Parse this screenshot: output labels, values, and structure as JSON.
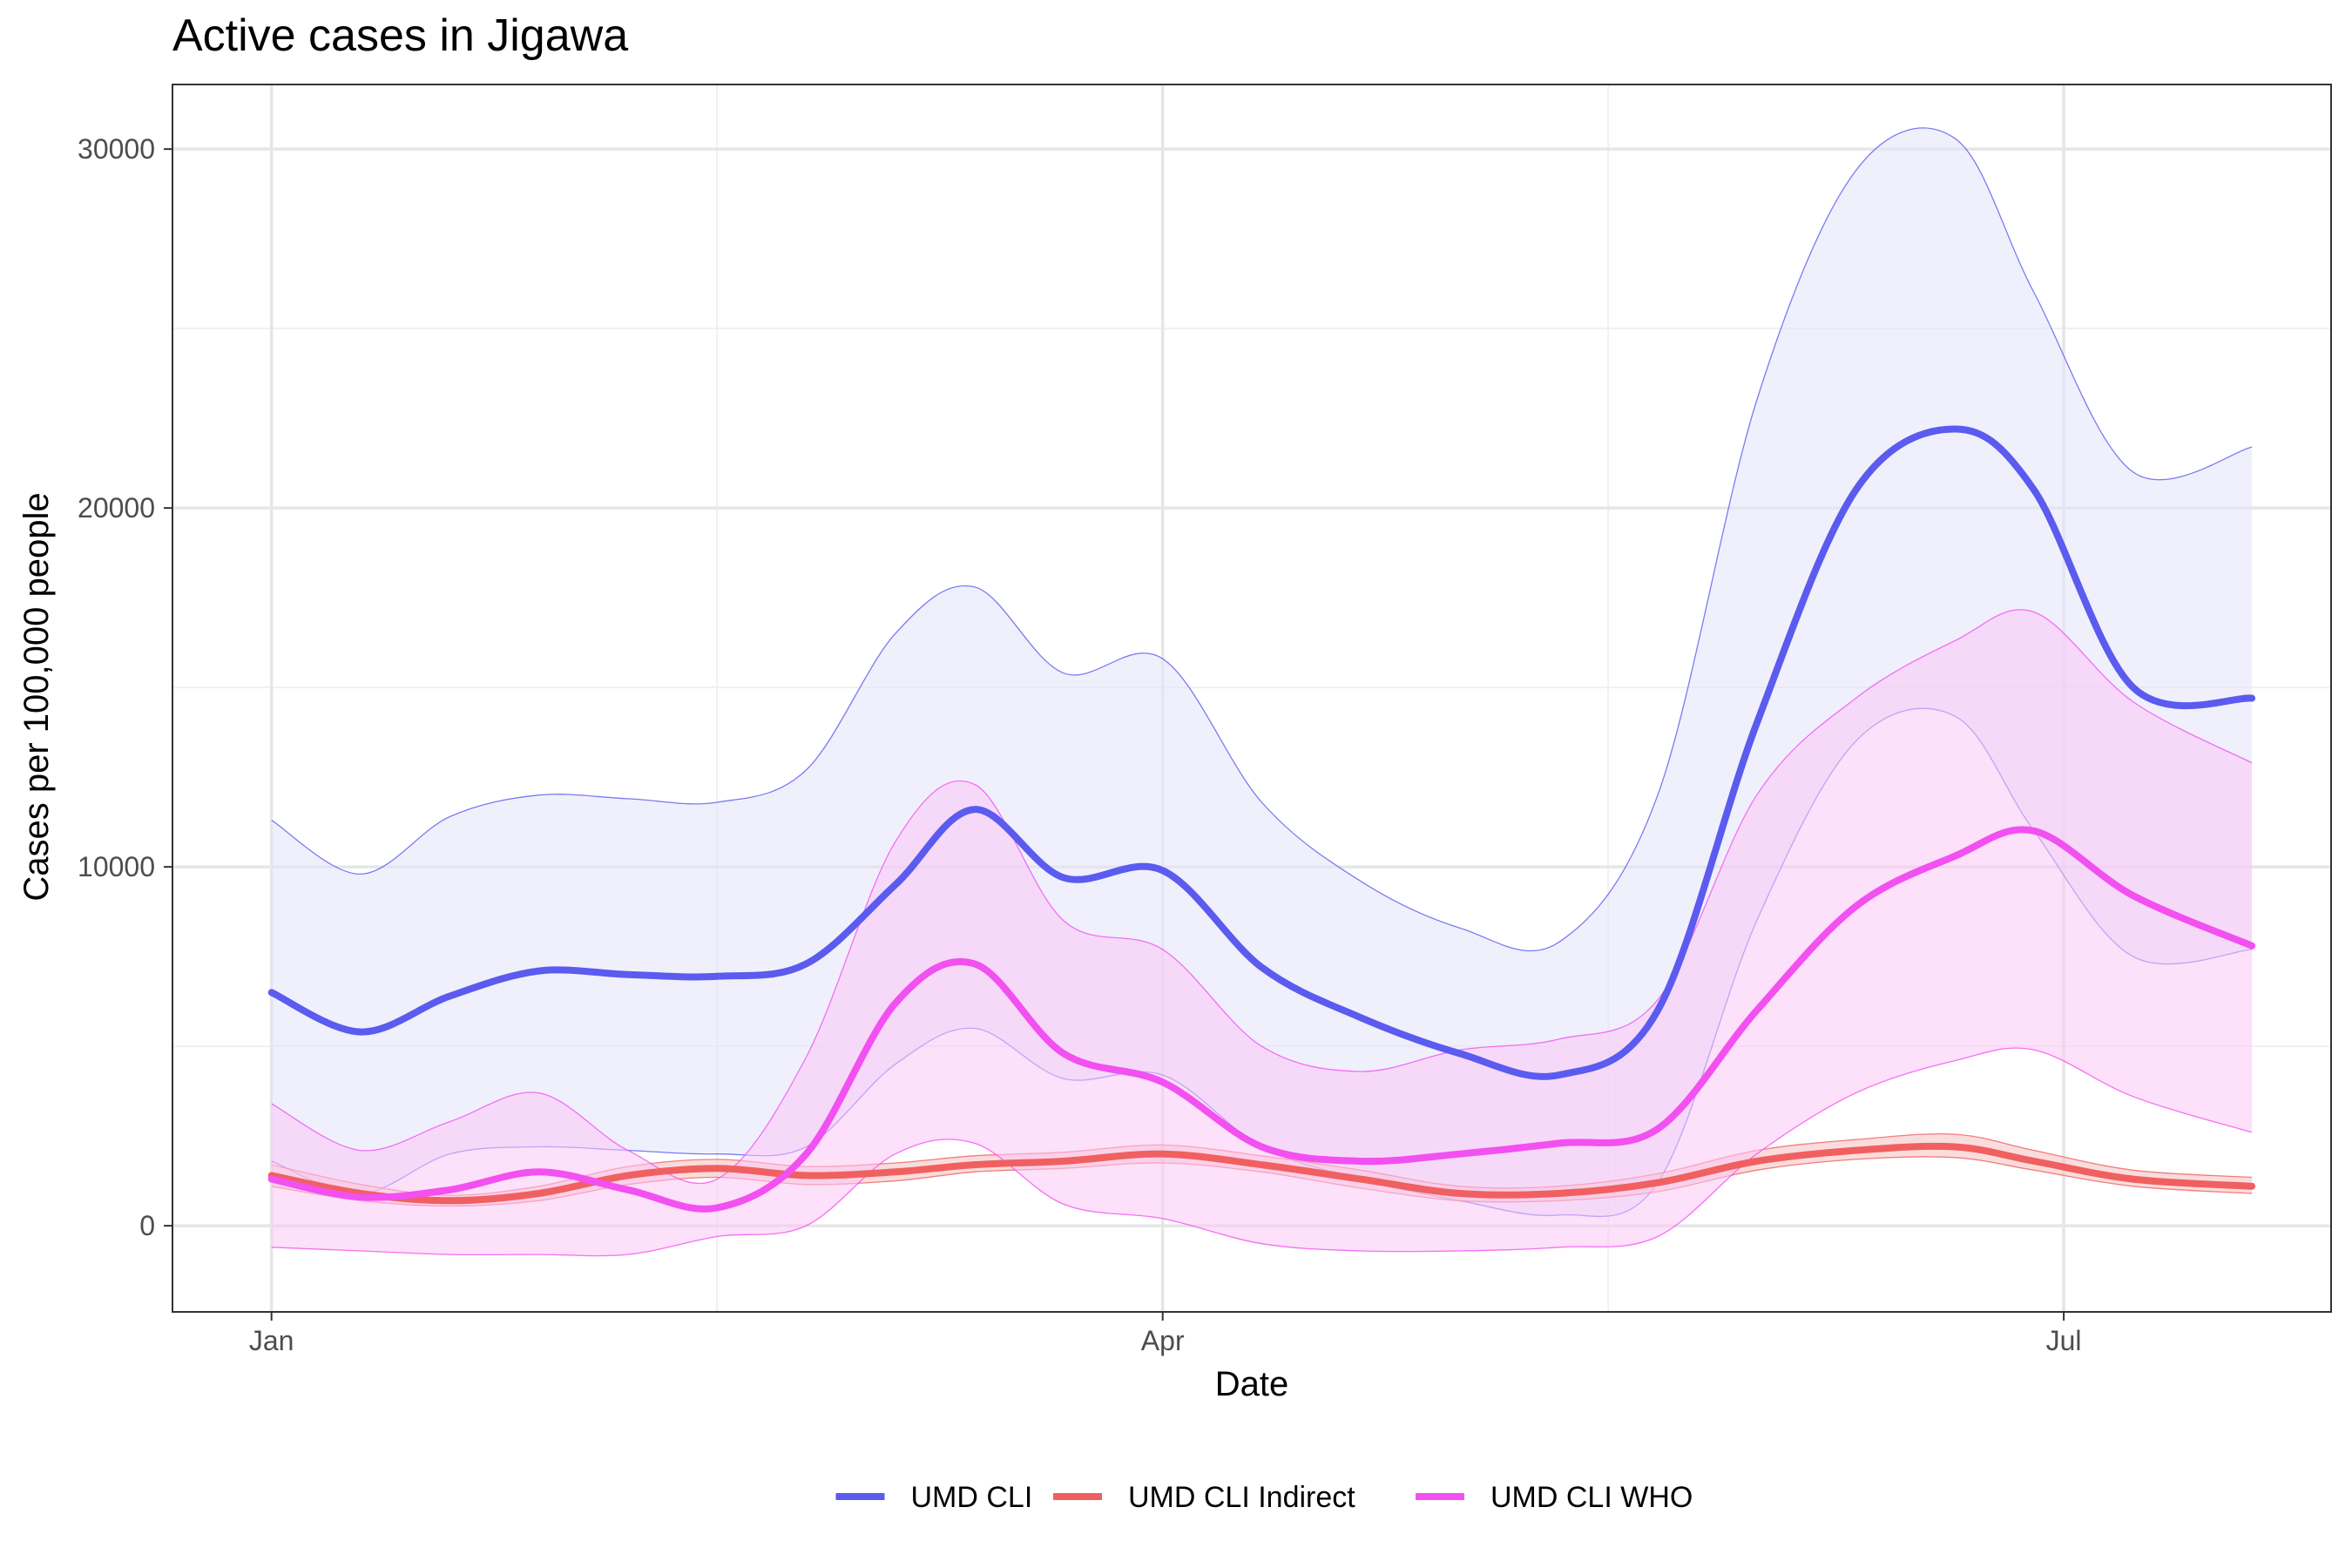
{
  "chart_data": {
    "type": "line",
    "title": "Active cases in Jigawa",
    "xlabel": "Date",
    "ylabel": "Cases per 100,000 people",
    "x_ticks": [
      {
        "label": "Jan",
        "value": 0
      },
      {
        "label": "Apr",
        "value": 90
      },
      {
        "label": "Jul",
        "value": 181
      }
    ],
    "x_minor_ticks": [
      45,
      135
    ],
    "xlim": [
      -10,
      208
    ],
    "y_ticks": [
      0,
      10000,
      20000,
      30000
    ],
    "y_minor_ticks": [
      5000,
      15000,
      25000
    ],
    "ylim": [
      -2400,
      31800
    ],
    "grid": true,
    "legend": {
      "position": "bottom"
    },
    "series": [
      {
        "name": "UMD CLI",
        "color": "#5b5bef",
        "band_color": "#e3e3fb",
        "x": [
          0,
          9,
          18,
          27,
          36,
          45,
          54,
          63,
          71,
          80,
          90,
          100,
          110,
          120,
          130,
          140,
          150,
          160,
          170,
          178,
          188,
          200
        ],
        "y": [
          6500,
          5400,
          6400,
          7100,
          7000,
          6950,
          7300,
          9500,
          11600,
          9700,
          9900,
          7200,
          5800,
          4800,
          4200,
          6000,
          14000,
          20500,
          22200,
          20500,
          15000,
          14700
        ],
        "lower": [
          1800,
          900,
          2000,
          2200,
          2100,
          2000,
          2200,
          4500,
          5500,
          4100,
          4200,
          2200,
          1300,
          700,
          300,
          1200,
          8500,
          13500,
          14200,
          11000,
          7500,
          7700
        ],
        "upper": [
          11300,
          9800,
          11400,
          12000,
          11900,
          11800,
          12700,
          16500,
          17800,
          15400,
          15800,
          11800,
          9600,
          8300,
          7900,
          12000,
          23000,
          29400,
          30300,
          26000,
          21000,
          21700
        ]
      },
      {
        "name": "UMD CLI Indirect",
        "color": "#f06060",
        "band_color": "#f6c0c0",
        "x": [
          0,
          9,
          18,
          27,
          36,
          45,
          54,
          63,
          71,
          80,
          90,
          100,
          110,
          120,
          130,
          140,
          150,
          160,
          170,
          178,
          188,
          200
        ],
        "y": [
          1400,
          900,
          700,
          900,
          1400,
          1600,
          1400,
          1500,
          1700,
          1800,
          2000,
          1700,
          1300,
          900,
          900,
          1200,
          1800,
          2100,
          2200,
          1800,
          1300,
          1100
        ],
        "lower": [
          1100,
          700,
          550,
          700,
          1150,
          1350,
          1150,
          1250,
          1500,
          1600,
          1750,
          1500,
          1050,
          700,
          700,
          950,
          1550,
          1850,
          1900,
          1550,
          1100,
          900
        ],
        "upper": [
          1700,
          1150,
          850,
          1100,
          1650,
          1850,
          1650,
          1750,
          1950,
          2050,
          2250,
          1950,
          1550,
          1100,
          1100,
          1450,
          2100,
          2400,
          2550,
          2100,
          1550,
          1350
        ]
      },
      {
        "name": "UMD CLI WHO",
        "color": "#f250f0",
        "band_color": "#fbc6f6",
        "x": [
          0,
          9,
          18,
          27,
          36,
          45,
          54,
          63,
          71,
          80,
          90,
          100,
          110,
          120,
          130,
          140,
          150,
          160,
          170,
          178,
          188,
          200
        ],
        "y": [
          1300,
          800,
          1000,
          1500,
          1000,
          500,
          2000,
          6200,
          7300,
          4800,
          4000,
          2200,
          1800,
          2000,
          2300,
          2700,
          6000,
          8900,
          10300,
          11000,
          9200,
          7800
        ],
        "lower": [
          -600,
          -700,
          -800,
          -800,
          -800,
          -300,
          0,
          2000,
          2300,
          600,
          200,
          -500,
          -700,
          -700,
          -600,
          -300,
          2000,
          3700,
          4600,
          4900,
          3600,
          2600
        ],
        "upper": [
          3400,
          2100,
          2900,
          3700,
          2100,
          1300,
          4700,
          10700,
          12300,
          8500,
          7700,
          5000,
          4300,
          4900,
          5200,
          6300,
          12000,
          14700,
          16300,
          17100,
          14600,
          12900
        ]
      }
    ]
  }
}
